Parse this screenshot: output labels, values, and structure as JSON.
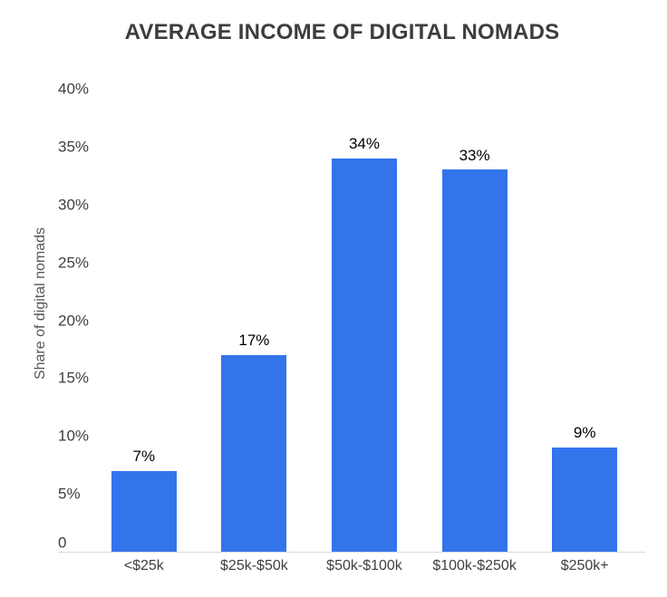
{
  "chart_data": {
    "type": "bar",
    "title": "AVERAGE INCOME OF DIGITAL NOMADS",
    "xlabel": "",
    "ylabel": "Share of digital nomads",
    "categories": [
      "<$25k",
      "$25k-$50k",
      "$50k-$100k",
      "$100k-$250k",
      "$250k+"
    ],
    "values": [
      7,
      17,
      34,
      33,
      9
    ],
    "value_labels": [
      "7%",
      "17%",
      "34%",
      "33%",
      "9%"
    ],
    "ylim": [
      0,
      40
    ],
    "yticks": [
      0,
      5,
      10,
      15,
      20,
      25,
      30,
      35,
      40
    ],
    "ytick_labels": [
      "0",
      "5%",
      "10%",
      "15%",
      "20%",
      "25%",
      "30%",
      "35%",
      "40%"
    ],
    "grid": false,
    "legend": "none",
    "colors": {
      "bar": "#3374eb",
      "title": "#3d3d3d",
      "tick_label": "#3f3f3f",
      "value_label": "#000000",
      "axis_title": "#575757",
      "axis_line": "#d9d9d9",
      "background": "#ffffff"
    }
  }
}
